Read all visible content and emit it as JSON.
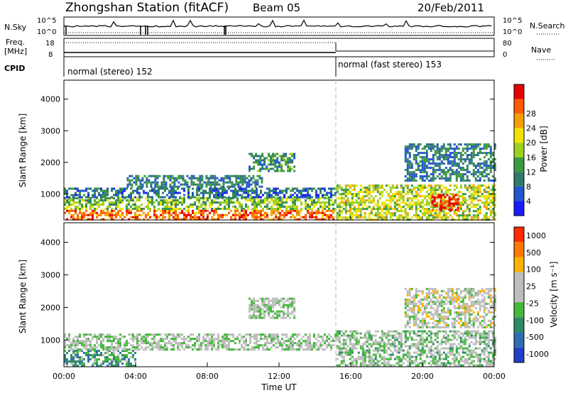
{
  "header": {
    "station": "Zhongshan Station (fitACF)",
    "beam": "Beam 05",
    "date": "20/Feb/2011"
  },
  "status_panels": {
    "nsky": {
      "label": "N.Sky",
      "ticks": [
        "10^5",
        "10^0"
      ],
      "right_label": "N.Search",
      "right_ticks": [
        "10^5",
        "10^0"
      ]
    },
    "freq": {
      "label_line1": "Freq.",
      "label_line2": "[MHz]",
      "ticks": [
        "18",
        "8"
      ],
      "right_label": "Nave",
      "right_ticks": [
        "80",
        "0"
      ]
    },
    "cpid": {
      "label": "CPID",
      "segments": [
        {
          "start_hour": 0,
          "text": "normal (stereo) 152"
        },
        {
          "start_hour": 15.3,
          "text": "normal (fast stereo) 153"
        }
      ]
    }
  },
  "chart_data": [
    {
      "type": "heatmap",
      "name": "power",
      "ylabel": "Slant Range [km]",
      "xlabel": "",
      "xlim": [
        0,
        24
      ],
      "ylim": [
        180,
        4600
      ],
      "yticks": [
        "1000",
        "2000",
        "3000",
        "4000"
      ],
      "colorbar": {
        "label": "Power [dB]",
        "ticks": [
          "4",
          "8",
          "12",
          "16",
          "20",
          "24",
          "28"
        ],
        "colors": [
          "#1a1aff",
          "#2255cc",
          "#2f7a6a",
          "#3a9a40",
          "#9ed020",
          "#f2e400",
          "#f5a000",
          "#ff5a00",
          "#e60000"
        ]
      },
      "scatter_regions": [
        {
          "x": [
            0,
            15.2
          ],
          "range": [
            200,
            500
          ],
          "level": 0.85
        },
        {
          "x": [
            0,
            15.2
          ],
          "range": [
            500,
            900
          ],
          "level": 0.45
        },
        {
          "x": [
            0,
            15.2
          ],
          "range": [
            900,
            1200
          ],
          "level": 0.2
        },
        {
          "x": [
            3.5,
            11.0
          ],
          "range": [
            1200,
            1600
          ],
          "level": 0.25
        },
        {
          "x": [
            10.3,
            12.8
          ],
          "range": [
            1700,
            2300
          ],
          "level": 0.3
        },
        {
          "x": [
            15.2,
            24
          ],
          "range": [
            200,
            1300
          ],
          "level": 0.55
        },
        {
          "x": [
            20.5,
            22.0
          ],
          "range": [
            500,
            1000
          ],
          "level": 0.95
        },
        {
          "x": [
            19.0,
            24
          ],
          "range": [
            1400,
            2600
          ],
          "level": 0.25
        }
      ]
    },
    {
      "type": "heatmap",
      "name": "velocity",
      "ylabel": "Slant Range [km]",
      "xlabel": "Time UT",
      "xlim": [
        0,
        24
      ],
      "ylim": [
        180,
        4600
      ],
      "yticks": [
        "1000",
        "2000",
        "3000",
        "4000"
      ],
      "xticks": [
        "00:00",
        "04:00",
        "08:00",
        "12:00",
        "16:00",
        "20:00",
        "00:00"
      ],
      "colorbar": {
        "label": "Velocity [m s⁻¹]",
        "ticks": [
          "1000",
          "500",
          "100",
          "25",
          "-25",
          "-100",
          "-500",
          "-1000"
        ],
        "colors": [
          "#1f3fc8",
          "#2e6eb0",
          "#2e8a64",
          "#43b83a",
          "#bdbdbd",
          "#bdbdbd",
          "#ffb000",
          "#ff7a00",
          "#ff2a00"
        ]
      },
      "scatter_regions": [
        {
          "x": [
            0,
            4.0
          ],
          "range": [
            200,
            700
          ],
          "level": 0.3
        },
        {
          "x": [
            0,
            15.2
          ],
          "range": [
            700,
            1200
          ],
          "level": 0.5
        },
        {
          "x": [
            10.3,
            12.8
          ],
          "range": [
            1700,
            2300
          ],
          "level": 0.5
        },
        {
          "x": [
            15.2,
            24
          ],
          "range": [
            200,
            1300
          ],
          "level": 0.45
        },
        {
          "x": [
            19.0,
            24
          ],
          "range": [
            1400,
            2600
          ],
          "level": 0.55
        }
      ]
    }
  ],
  "axis": {
    "xlabel": "Time UT"
  }
}
